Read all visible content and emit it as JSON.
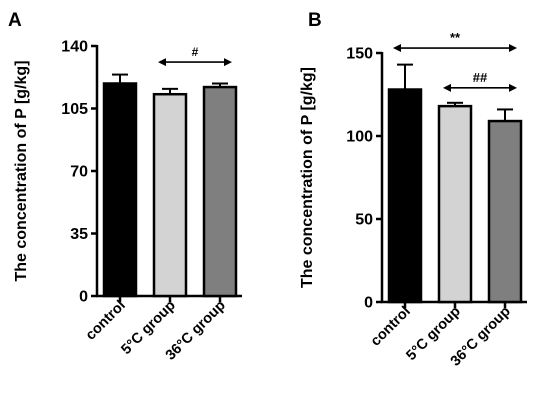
{
  "chart_data": [
    {
      "panel": "A",
      "type": "bar",
      "ylabel": "The concentration of P [g/kg]",
      "categories": [
        "control",
        "5°C group",
        "36°C group"
      ],
      "values": [
        119,
        113,
        117
      ],
      "errors": [
        5,
        3,
        2
      ],
      "colors": [
        "#000000",
        "#d3d3d3",
        "#7f7f7f"
      ],
      "ylim": [
        0,
        140
      ],
      "yticks": [
        0,
        35,
        70,
        105,
        140
      ],
      "annotations": [
        {
          "text": "#",
          "from": 1,
          "to": 2,
          "y": 131
        }
      ],
      "grid": false
    },
    {
      "panel": "B",
      "type": "bar",
      "ylabel": "The concentration of P [g/kg]",
      "categories": [
        "control",
        "5°C group",
        "36°C group"
      ],
      "values": [
        128,
        118,
        109
      ],
      "errors": [
        15,
        2,
        7
      ],
      "colors": [
        "#000000",
        "#d3d3d3",
        "#7f7f7f"
      ],
      "ylim": [
        0,
        150
      ],
      "yticks": [
        0,
        50,
        100,
        150
      ],
      "annotations": [
        {
          "text": "**",
          "from": 0,
          "to": 2,
          "y": 153
        },
        {
          "text": "##",
          "from": 1,
          "to": 2,
          "y": 129
        }
      ],
      "grid": false
    }
  ]
}
